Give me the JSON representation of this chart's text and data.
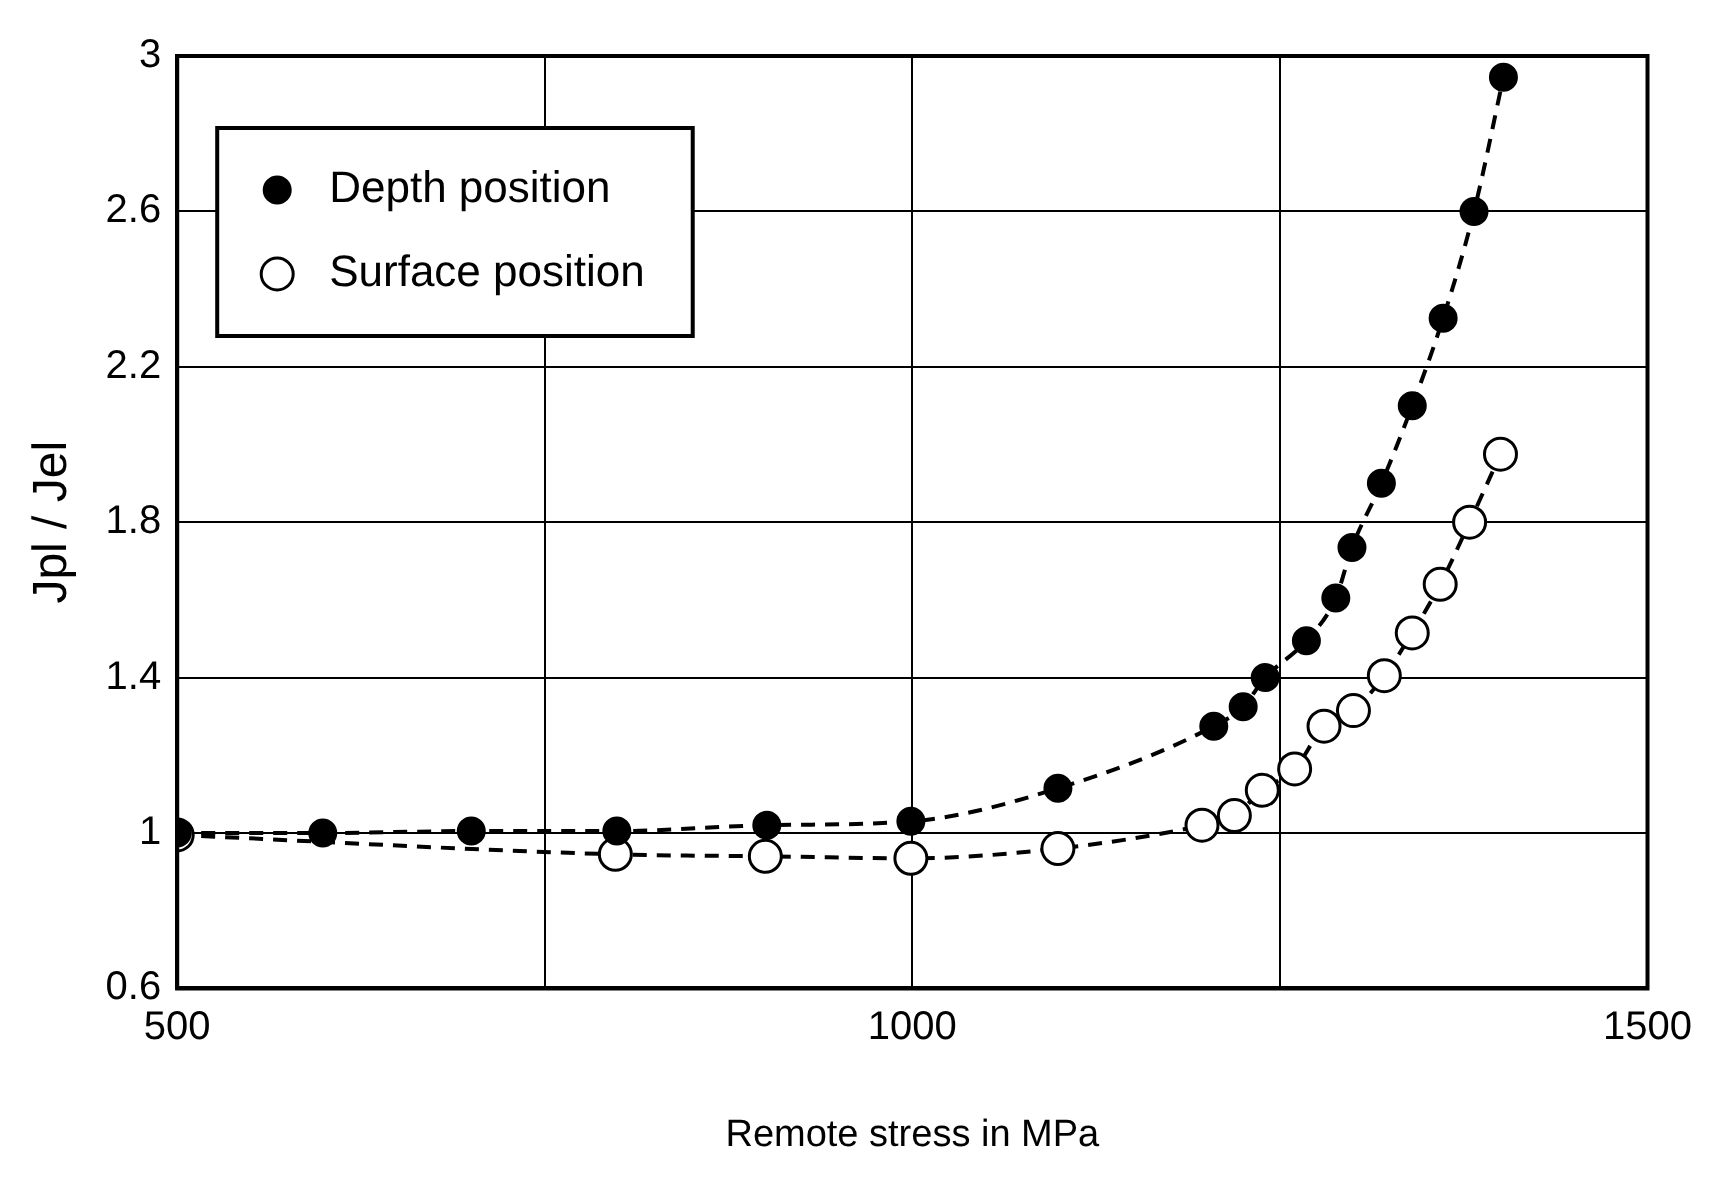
{
  "chart_data": {
    "type": "line",
    "xlabel": "Remote stress in MPa",
    "ylabel": "Jpl / Jel",
    "xlim": [
      500,
      1500
    ],
    "xticks": [
      500,
      {
        "value": 750,
        "label": null
      },
      1000,
      {
        "value": 1250,
        "label": null
      },
      1500
    ],
    "ylim": [
      0.6,
      3
    ],
    "yticks": [
      0.6,
      1,
      1.4,
      1.8,
      2.2,
      2.6,
      3
    ],
    "grid": true,
    "legend": "top left",
    "marker": "circle",
    "line_style": "dashed",
    "series": [
      {
        "name": "Depth position",
        "color": "#000000",
        "x": [
          500,
          599,
          700,
          799,
          901,
          999,
          1099,
          1205,
          1225,
          1240,
          1268,
          1288,
          1299,
          1319,
          1340,
          1361,
          1382,
          1402
        ],
        "values": [
          1.0,
          1.0,
          1.005,
          1.005,
          1.02,
          1.03,
          1.115,
          1.275,
          1.325,
          1.4,
          1.495,
          1.605,
          1.735,
          1.9,
          2.1,
          2.325,
          2.6,
          2.945
        ]
      },
      {
        "name": "Surface position",
        "color": "#000000",
        "x": [
          500,
          798,
          900,
          999,
          1099,
          1197,
          1219,
          1238,
          1260,
          1280,
          1300,
          1321,
          1340,
          1359,
          1379,
          1400
        ],
        "values": [
          0.995,
          0.945,
          0.94,
          0.935,
          0.96,
          1.02,
          1.045,
          1.11,
          1.165,
          1.275,
          1.315,
          1.405,
          1.515,
          1.64,
          1.8,
          1.975
        ]
      }
    ]
  }
}
